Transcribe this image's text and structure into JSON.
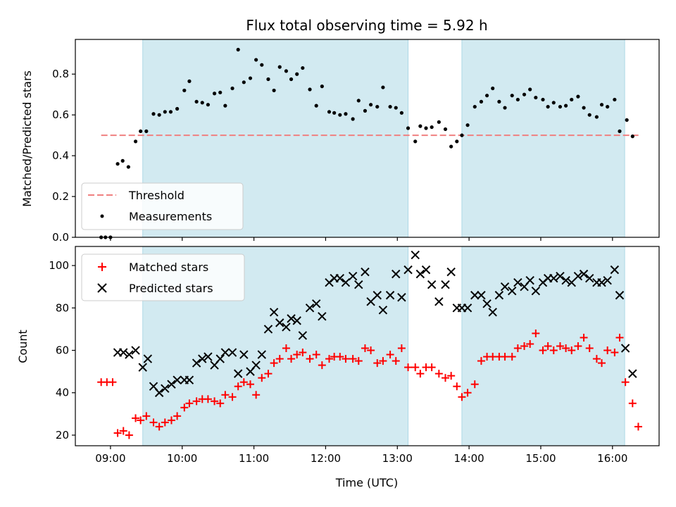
{
  "chart_data": {
    "title": "Flux total observing time = 5.92 h",
    "type": "scatter",
    "xlabel": "Time (UTC)",
    "x_ticks": [
      "09:00",
      "10:00",
      "11:00",
      "12:00",
      "13:00",
      "14:00",
      "15:00",
      "16:00"
    ],
    "x_range_hours": [
      8.51,
      16.65
    ],
    "colors": {
      "threshold": "#f08080",
      "shading": "#add8e6",
      "matched": "#ff0000",
      "predicted": "#000000",
      "measurements": "#000000"
    },
    "shaded_intervals_hours": [
      [
        9.45,
        13.15
      ],
      [
        13.9,
        16.17
      ]
    ],
    "panels": [
      {
        "ylabel": "Matched/Predicted stars",
        "ylim": [
          0,
          0.97
        ],
        "y_ticks": [
          0.0,
          0.2,
          0.4,
          0.6,
          0.8
        ],
        "y_tick_labels": [
          "0.0",
          "0.2",
          "0.4",
          "0.6",
          "0.8"
        ],
        "legend": {
          "position": "lower-left",
          "entries": [
            "Threshold",
            "Measurements"
          ]
        },
        "threshold": {
          "name": "Threshold",
          "y": 0.5,
          "x_range": [
            8.87,
            16.4
          ]
        },
        "series": [
          {
            "name": "Measurements",
            "x": [
              8.87,
              8.93,
              9.0,
              9.1,
              9.17,
              9.25,
              9.35,
              9.42,
              9.5,
              9.6,
              9.68,
              9.76,
              9.84,
              9.93,
              10.03,
              10.1,
              10.2,
              10.28,
              10.36,
              10.45,
              10.53,
              10.6,
              10.7,
              10.78,
              10.86,
              10.95,
              11.03,
              11.11,
              11.2,
              11.28,
              11.36,
              11.45,
              11.52,
              11.6,
              11.68,
              11.78,
              11.87,
              11.95,
              12.05,
              12.12,
              12.2,
              12.28,
              12.38,
              12.46,
              12.55,
              12.63,
              12.72,
              12.8,
              12.9,
              12.98,
              13.06,
              13.15,
              13.25,
              13.32,
              13.4,
              13.48,
              13.58,
              13.67,
              13.75,
              13.83,
              13.9,
              13.98,
              14.08,
              14.17,
              14.25,
              14.33,
              14.42,
              14.5,
              14.6,
              14.68,
              14.77,
              14.85,
              14.93,
              15.03,
              15.1,
              15.18,
              15.27,
              15.35,
              15.43,
              15.52,
              15.6,
              15.68,
              15.78,
              15.85,
              15.93,
              16.03,
              16.1,
              16.2,
              16.28
            ],
            "y": [
              0.0,
              0.0,
              0.0,
              0.36,
              0.375,
              0.345,
              0.47,
              0.52,
              0.52,
              0.605,
              0.6,
              0.615,
              0.615,
              0.63,
              0.72,
              0.765,
              0.665,
              0.66,
              0.65,
              0.705,
              0.71,
              0.645,
              0.73,
              0.92,
              0.76,
              0.78,
              0.87,
              0.845,
              0.775,
              0.72,
              0.835,
              0.815,
              0.775,
              0.8,
              0.83,
              0.725,
              0.645,
              0.74,
              0.615,
              0.61,
              0.6,
              0.605,
              0.58,
              0.67,
              0.62,
              0.65,
              0.64,
              0.735,
              0.64,
              0.635,
              0.61,
              0.535,
              0.47,
              0.545,
              0.535,
              0.54,
              0.565,
              0.53,
              0.445,
              0.47,
              0.5,
              0.55,
              0.64,
              0.665,
              0.695,
              0.73,
              0.665,
              0.635,
              0.695,
              0.675,
              0.7,
              0.725,
              0.685,
              0.675,
              0.64,
              0.66,
              0.64,
              0.645,
              0.675,
              0.69,
              0.635,
              0.6,
              0.59,
              0.65,
              0.64,
              0.675,
              0.52,
              0.575,
              0.495
            ]
          }
        ]
      },
      {
        "ylabel": "Count",
        "ylim": [
          15,
          109
        ],
        "y_ticks": [
          20,
          40,
          60,
          80,
          100
        ],
        "y_tick_labels": [
          "20",
          "40",
          "60",
          "80",
          "100"
        ],
        "legend": {
          "position": "top-left",
          "entries": [
            "Matched stars",
            "Predicted stars"
          ]
        },
        "series": [
          {
            "name": "Matched stars",
            "marker": "plus",
            "x": [
              8.87,
              8.95,
              9.03,
              9.1,
              9.18,
              9.26,
              9.35,
              9.42,
              9.5,
              9.6,
              9.68,
              9.76,
              9.85,
              9.93,
              10.03,
              10.1,
              10.2,
              10.28,
              10.36,
              10.45,
              10.53,
              10.6,
              10.7,
              10.78,
              10.86,
              10.95,
              11.03,
              11.11,
              11.2,
              11.28,
              11.36,
              11.45,
              11.52,
              11.6,
              11.68,
              11.78,
              11.87,
              11.95,
              12.05,
              12.12,
              12.2,
              12.28,
              12.38,
              12.46,
              12.55,
              12.63,
              12.72,
              12.8,
              12.9,
              12.98,
              13.06,
              13.15,
              13.25,
              13.32,
              13.4,
              13.48,
              13.58,
              13.67,
              13.75,
              13.83,
              13.9,
              13.98,
              14.08,
              14.17,
              14.25,
              14.33,
              14.42,
              14.5,
              14.6,
              14.68,
              14.77,
              14.85,
              14.93,
              15.03,
              15.1,
              15.18,
              15.27,
              15.35,
              15.43,
              15.52,
              15.6,
              15.68,
              15.78,
              15.85,
              15.93,
              16.03,
              16.1,
              16.18,
              16.28,
              16.36
            ],
            "y": [
              45,
              45,
              45,
              21,
              22,
              20,
              28,
              27,
              29,
              26,
              24,
              26,
              27,
              29,
              33,
              35,
              36,
              37,
              37,
              36,
              35,
              39,
              38,
              43,
              45,
              44,
              39,
              47,
              49,
              54,
              56,
              61,
              56,
              58,
              59,
              56,
              58,
              53,
              56,
              57,
              57,
              56,
              56,
              55,
              61,
              60,
              54,
              55,
              58,
              55,
              61,
              52,
              52,
              49,
              52,
              52,
              49,
              47,
              48,
              43,
              38,
              40,
              44,
              55,
              57,
              57,
              57,
              57,
              57,
              61,
              62,
              63,
              68,
              60,
              62,
              60,
              62,
              61,
              60,
              62,
              66,
              61,
              56,
              54,
              60,
              59,
              66,
              45,
              35,
              24
            ]
          },
          {
            "name": "Predicted stars",
            "marker": "x",
            "x": [
              9.1,
              9.18,
              9.26,
              9.35,
              9.45,
              9.52,
              9.6,
              9.68,
              9.76,
              9.85,
              9.93,
              10.03,
              10.1,
              10.2,
              10.28,
              10.36,
              10.45,
              10.53,
              10.6,
              10.7,
              10.78,
              10.86,
              10.95,
              11.03,
              11.11,
              11.2,
              11.28,
              11.36,
              11.45,
              11.52,
              11.6,
              11.68,
              11.78,
              11.87,
              11.95,
              12.05,
              12.12,
              12.2,
              12.28,
              12.38,
              12.46,
              12.55,
              12.63,
              12.72,
              12.8,
              12.9,
              12.98,
              13.06,
              13.15,
              13.25,
              13.32,
              13.4,
              13.48,
              13.58,
              13.67,
              13.75,
              13.83,
              13.9,
              13.98,
              14.08,
              14.17,
              14.25,
              14.33,
              14.42,
              14.5,
              14.6,
              14.68,
              14.77,
              14.85,
              14.93,
              15.03,
              15.1,
              15.18,
              15.27,
              15.35,
              15.43,
              15.52,
              15.6,
              15.68,
              15.78,
              15.85,
              15.93,
              16.03,
              16.1,
              16.18,
              16.28
            ],
            "y": [
              59,
              59,
              58,
              60,
              52,
              56,
              43,
              40,
              42,
              44,
              46,
              46,
              46,
              54,
              56,
              57,
              53,
              56,
              59,
              59,
              49,
              58,
              50,
              53,
              58,
              70,
              78,
              73,
              71,
              75,
              74,
              67,
              80,
              82,
              76,
              92,
              94,
              94,
              92,
              95,
              91,
              97,
              83,
              86,
              79,
              86,
              96,
              85,
              98,
              105,
              96,
              98,
              91,
              83,
              91,
              97,
              80,
              80,
              80,
              86,
              86,
              82,
              78,
              86,
              90,
              88,
              92,
              90,
              93,
              88,
              92,
              94,
              94,
              95,
              93,
              92,
              95,
              96,
              94,
              92,
              92,
              93,
              98,
              86,
              61,
              49
            ]
          }
        ]
      }
    ]
  }
}
